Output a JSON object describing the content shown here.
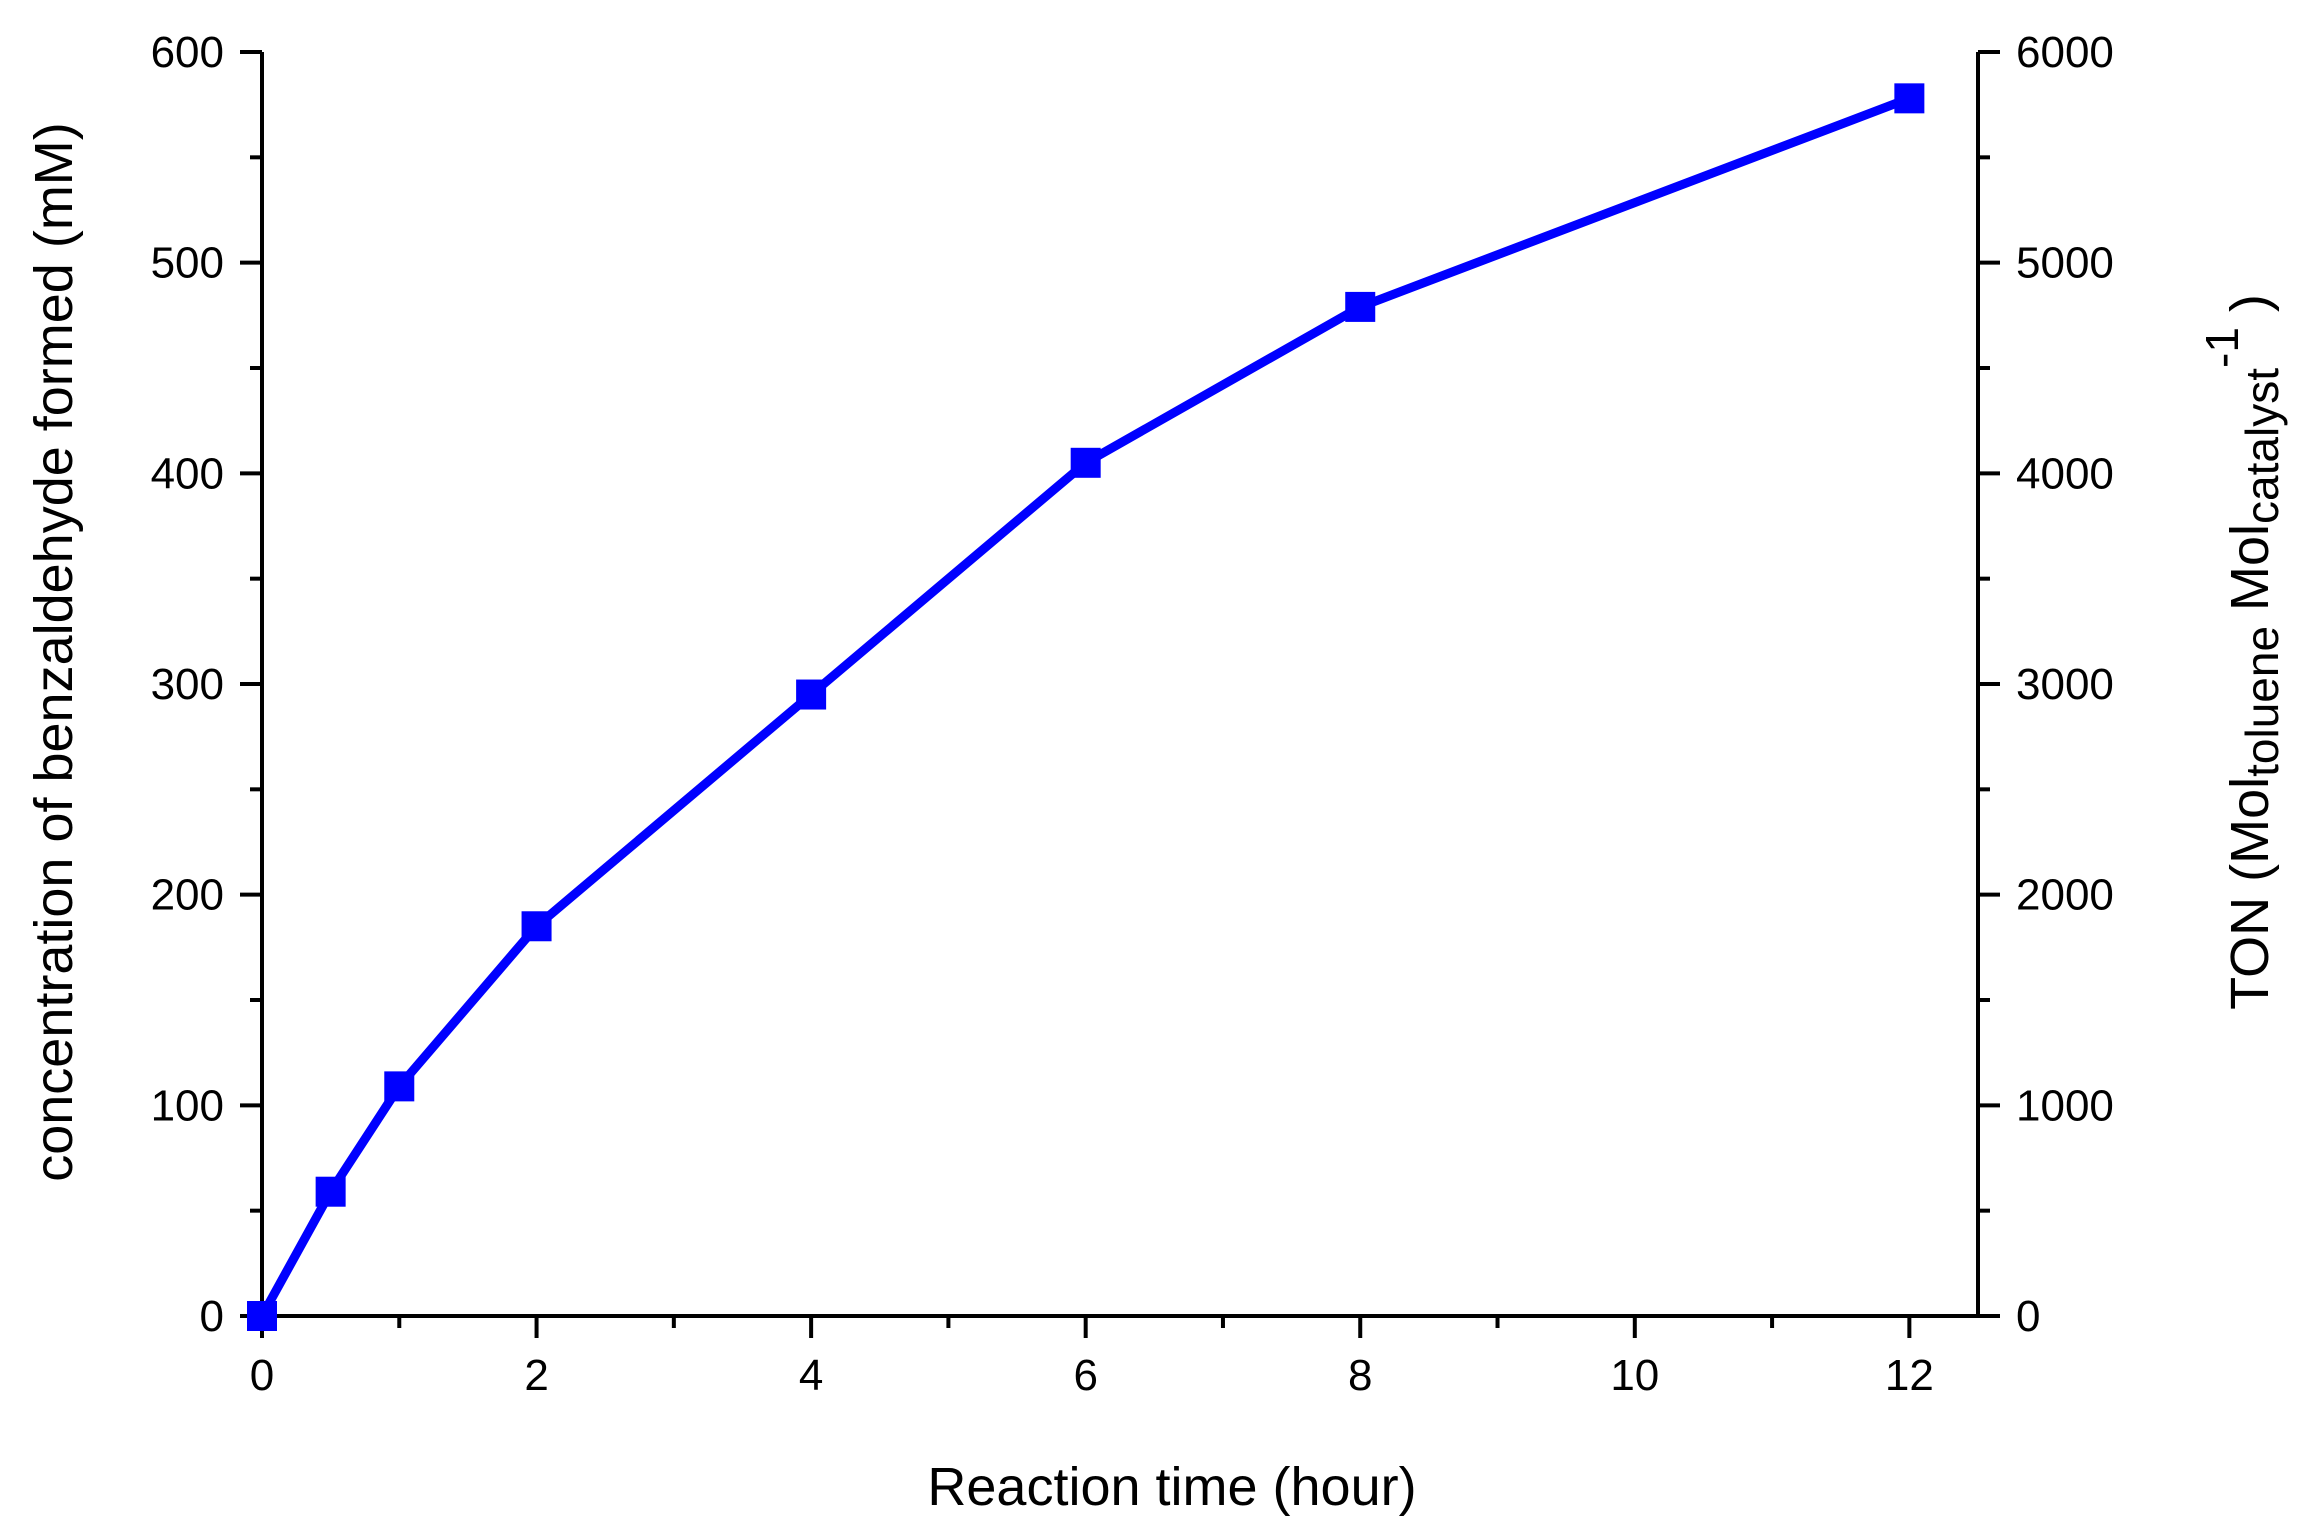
{
  "chart_data": {
    "type": "line",
    "title": "",
    "xlabel": "Reaction time (hour)",
    "ylabel": "concentration of benzaldehyde formed (mM)",
    "y2label": {
      "prefix": "TON (Mol",
      "sub1": "toluene",
      "mid": " Mol",
      "sub2": "catalyst",
      "sup": "-1",
      "suffix": " )"
    },
    "xlim": [
      0,
      12.5
    ],
    "ylim": [
      0,
      600
    ],
    "y2lim": [
      0,
      6000
    ],
    "xticks": [
      0,
      2,
      4,
      6,
      8,
      10,
      12
    ],
    "yticks": [
      0,
      100,
      200,
      300,
      400,
      500,
      600
    ],
    "y2ticks": [
      0,
      1000,
      2000,
      3000,
      4000,
      5000,
      6000
    ],
    "xtick_labels": [
      "0",
      "2",
      "4",
      "6",
      "8",
      "10",
      "12"
    ],
    "ytick_labels": [
      "0",
      "100",
      "200",
      "300",
      "400",
      "500",
      "600"
    ],
    "y2tick_labels": [
      "0",
      "1000",
      "2000",
      "3000",
      "4000",
      "5000",
      "6000"
    ],
    "grid": false,
    "series": [
      {
        "x": [
          0,
          0.5,
          1,
          2,
          4,
          6,
          8,
          12
        ],
        "values": [
          0,
          59,
          109,
          185,
          295,
          405,
          479,
          578
        ],
        "color": "#0000ff",
        "marker": "square"
      }
    ]
  }
}
